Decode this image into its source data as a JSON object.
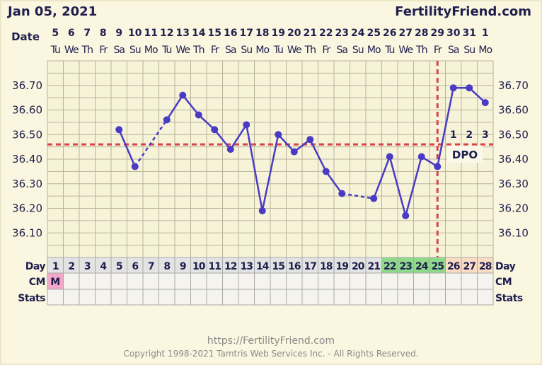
{
  "header": {
    "date": "Jan 05, 2021",
    "brand": "FertilityFriend.com"
  },
  "footer": {
    "url": "https://FertilityFriend.com",
    "copyright": "Copyright 1998-2021 Tamtris Web Services Inc. - All Rights Reserved."
  },
  "colors": {
    "line": "#4a3bc4",
    "coverline": "#d9424a",
    "grid": "#b8b39a",
    "plot_bg": "#f7f3d9",
    "menses": "#f2a9c9",
    "fertile": "#8fd98a",
    "luteal": "#fbdcc3",
    "cell": "#f4f3ed",
    "day_cell": "#e3e3e3",
    "text": "#1f1f4f"
  },
  "chart_data": {
    "type": "line",
    "title": "Jan 05, 2021",
    "row_labels": {
      "date": "Date",
      "day": "Day",
      "cm": "CM",
      "stats": "Stats"
    },
    "dates": [
      "5",
      "6",
      "7",
      "8",
      "9",
      "10",
      "11",
      "12",
      "13",
      "14",
      "15",
      "16",
      "17",
      "18",
      "19",
      "20",
      "21",
      "22",
      "23",
      "24",
      "25",
      "26",
      "27",
      "28",
      "29",
      "30",
      "31",
      "1"
    ],
    "weekdays": [
      "Tu",
      "We",
      "Th",
      "Fr",
      "Sa",
      "Su",
      "Mo",
      "Tu",
      "We",
      "Th",
      "Fr",
      "Sa",
      "Su",
      "Mo",
      "Tu",
      "We",
      "Th",
      "Fr",
      "Sa",
      "Su",
      "Mo",
      "Tu",
      "We",
      "Th",
      "Fr",
      "Sa",
      "Su",
      "Mo"
    ],
    "days": [
      1,
      2,
      3,
      4,
      5,
      6,
      7,
      8,
      9,
      10,
      11,
      12,
      13,
      14,
      15,
      16,
      17,
      18,
      19,
      20,
      21,
      22,
      23,
      24,
      25,
      26,
      27,
      28
    ],
    "temperatures": [
      null,
      null,
      null,
      null,
      36.52,
      36.37,
      null,
      36.56,
      36.66,
      36.58,
      36.52,
      36.44,
      36.54,
      36.19,
      36.5,
      36.43,
      36.48,
      36.35,
      36.26,
      null,
      36.24,
      36.41,
      36.17,
      36.41,
      36.37,
      36.69,
      36.69,
      36.63
    ],
    "ylim": [
      36.0,
      36.8
    ],
    "yticks": [
      "36.10",
      "36.20",
      "36.30",
      "36.40",
      "36.50",
      "36.60",
      "36.70"
    ],
    "coverline": 36.46,
    "ovulation_day": 25,
    "dpo_labels": [
      "1",
      "2",
      "3"
    ],
    "dpo_text": "DPO",
    "cm": {
      "1": "M"
    },
    "fertile_days": [
      22,
      23,
      24,
      25
    ],
    "luteal_days": [
      26,
      27,
      28
    ]
  }
}
